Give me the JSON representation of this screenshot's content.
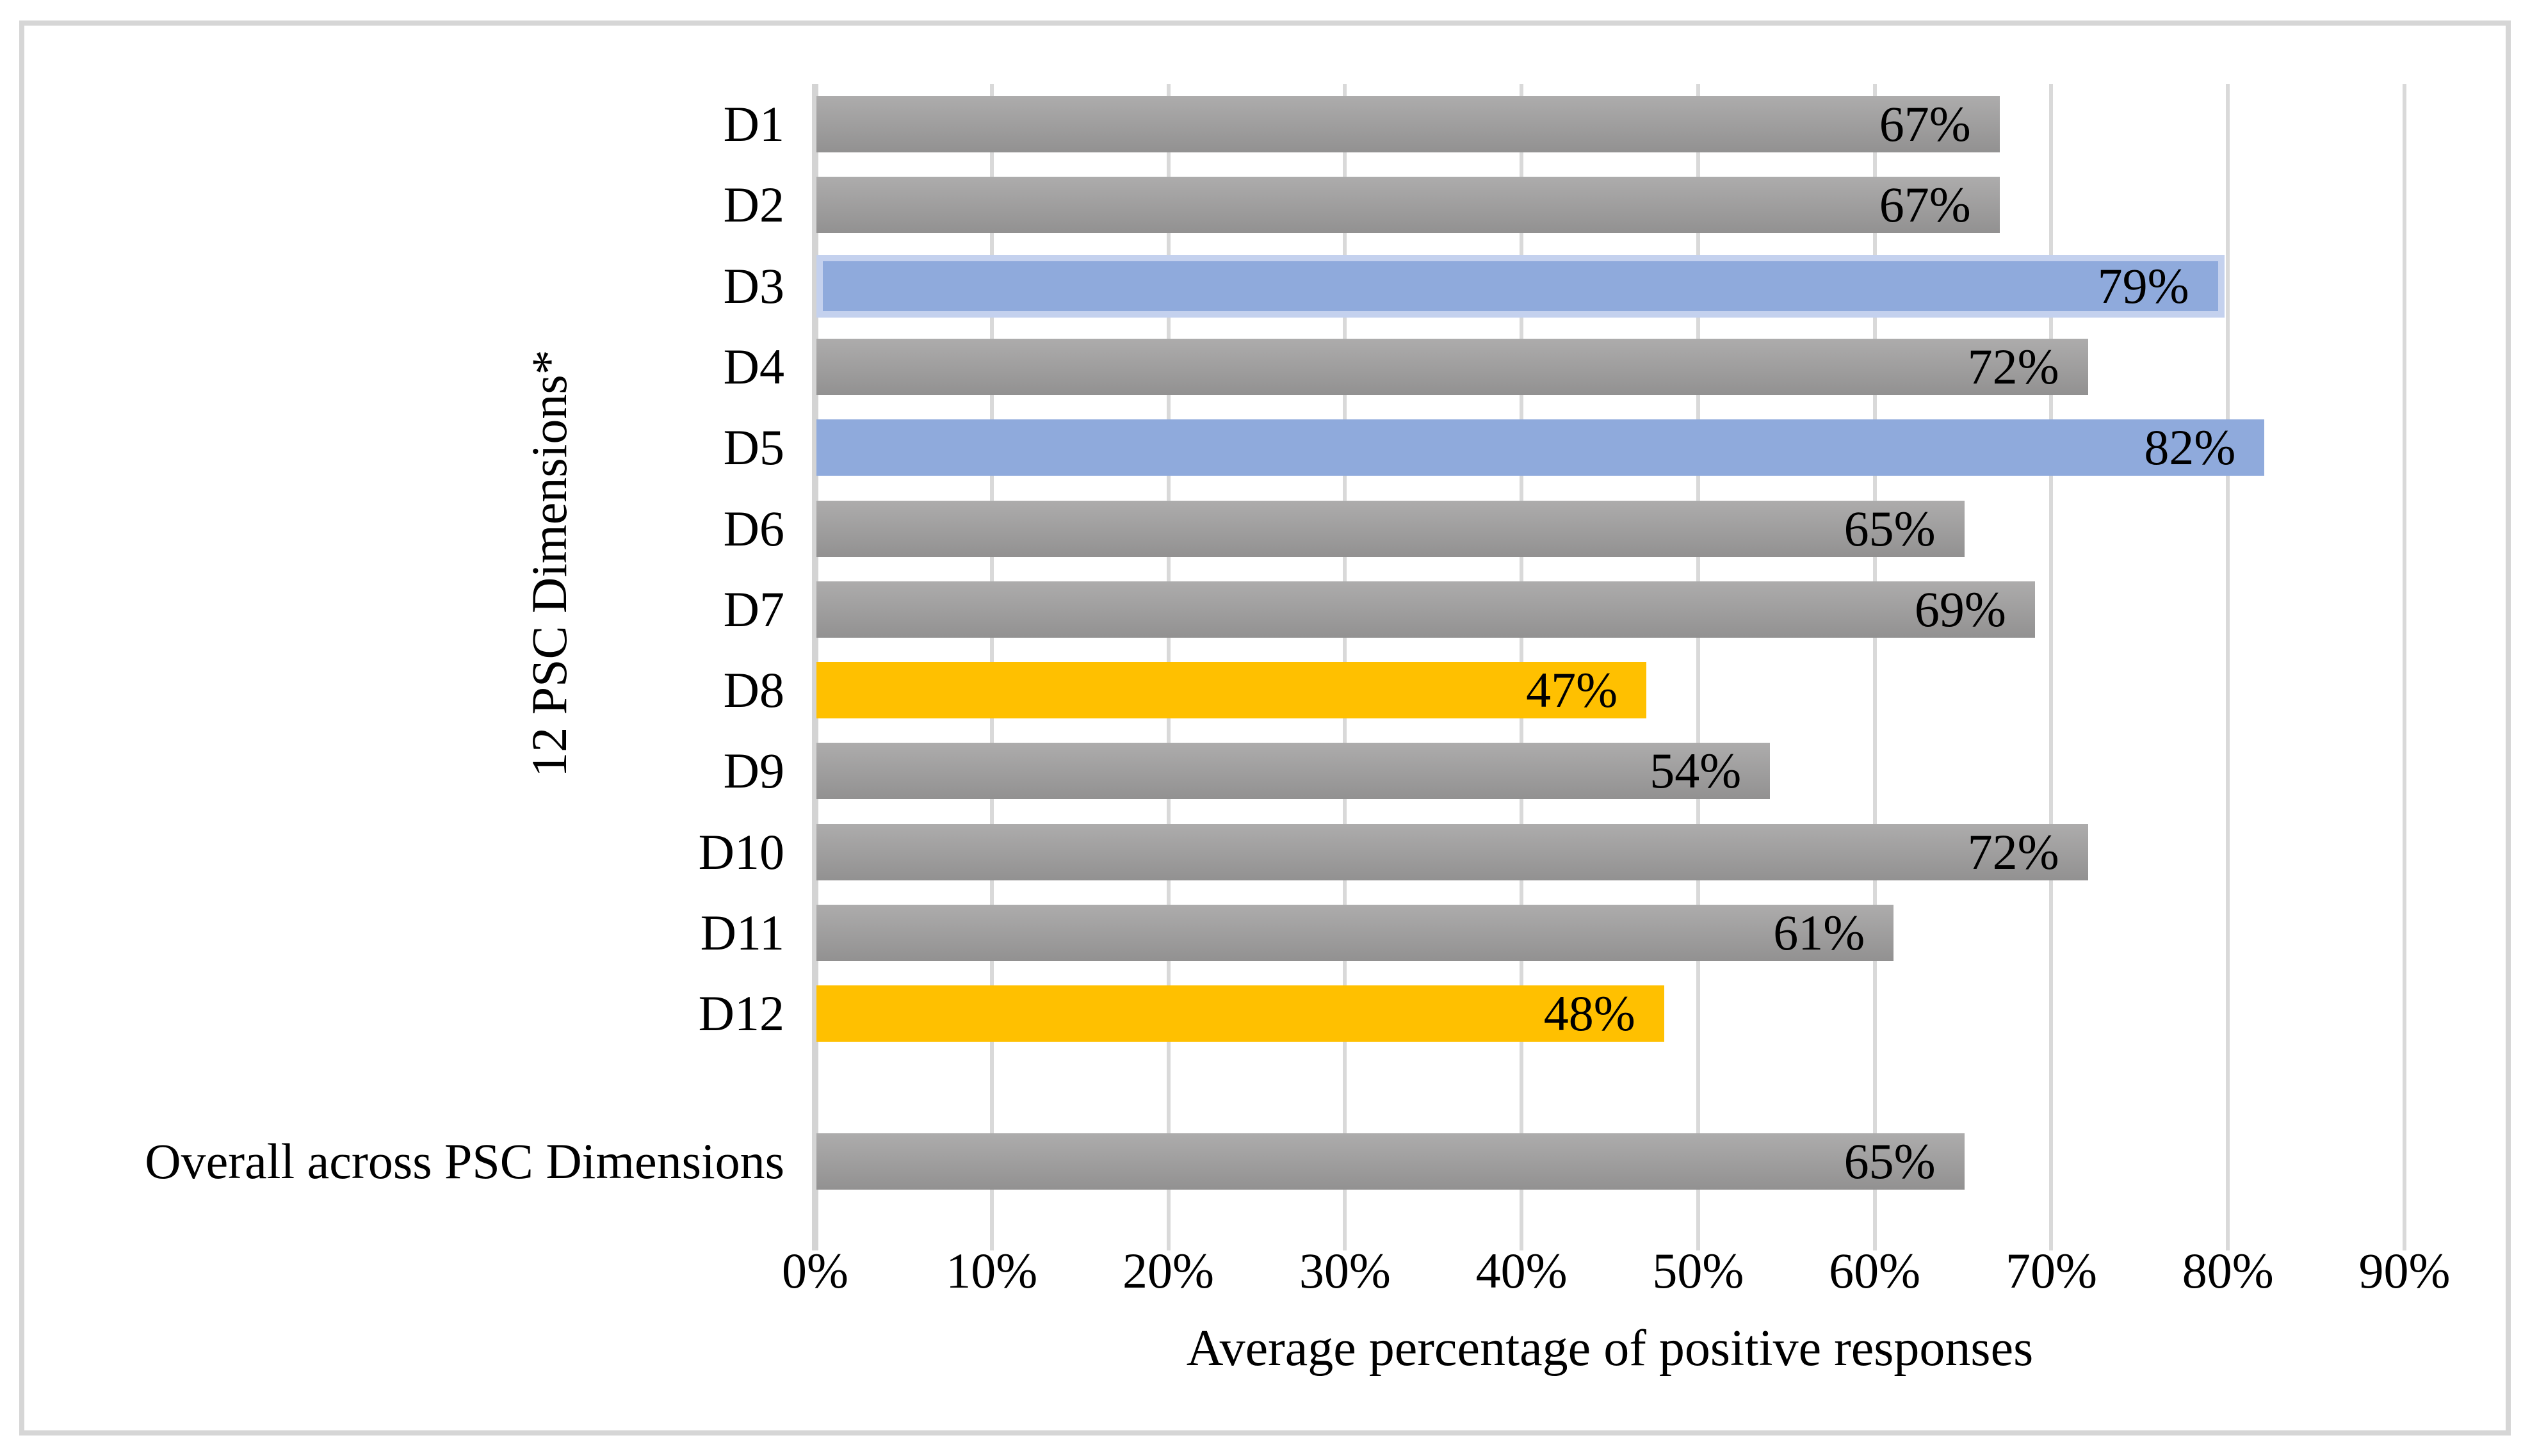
{
  "chart_data": {
    "type": "bar",
    "orientation": "horizontal",
    "xlabel": "Average percentage of positive responses",
    "ylabel": "12 PSC Dimensions*",
    "xlim": [
      0,
      90
    ],
    "xtick_step": 10,
    "xticks": [
      "0%",
      "10%",
      "20%",
      "30%",
      "40%",
      "50%",
      "60%",
      "70%",
      "80%",
      "90%"
    ],
    "grid": true,
    "legend": "none",
    "categories": [
      "D1",
      "D2",
      "D3",
      "D4",
      "D5",
      "D6",
      "D7",
      "D8",
      "D9",
      "D10",
      "D11",
      "D12",
      "Overall across PSC Dimensions"
    ],
    "values": [
      67,
      67,
      79,
      72,
      82,
      65,
      69,
      47,
      54,
      72,
      61,
      48,
      65
    ],
    "rows": [
      {
        "category": "D1",
        "value": 67,
        "label": "67%",
        "color": "gray"
      },
      {
        "category": "D2",
        "value": 67,
        "label": "67%",
        "color": "gray"
      },
      {
        "category": "D3",
        "value": 79,
        "label": "79%",
        "color": "blue",
        "bordered": true
      },
      {
        "category": "D4",
        "value": 72,
        "label": "72%",
        "color": "gray"
      },
      {
        "category": "D5",
        "value": 82,
        "label": "82%",
        "color": "blue"
      },
      {
        "category": "D6",
        "value": 65,
        "label": "65%",
        "color": "gray"
      },
      {
        "category": "D7",
        "value": 69,
        "label": "69%",
        "color": "gray"
      },
      {
        "category": "D8",
        "value": 47,
        "label": "47%",
        "color": "yellow"
      },
      {
        "category": "D9",
        "value": 54,
        "label": "54%",
        "color": "gray"
      },
      {
        "category": "D10",
        "value": 72,
        "label": "72%",
        "color": "gray"
      },
      {
        "category": "D11",
        "value": 61,
        "label": "61%",
        "color": "gray"
      },
      {
        "category": "D12",
        "value": 48,
        "label": "48%",
        "color": "yellow"
      },
      {
        "category": "Overall across PSC Dimensions",
        "value": 65,
        "label": "65%",
        "color": "gray",
        "group": "overall"
      }
    ],
    "colors": {
      "gray_top": "#ADACAC",
      "gray_bottom": "#929191",
      "blue": "#8FAADC",
      "blue_border": "#C4D1EE",
      "yellow": "#FFC000",
      "gridline": "#D9D9D9",
      "frame": "#D6D6D6",
      "text": "#000000"
    },
    "data_label_position": "inside-end"
  }
}
